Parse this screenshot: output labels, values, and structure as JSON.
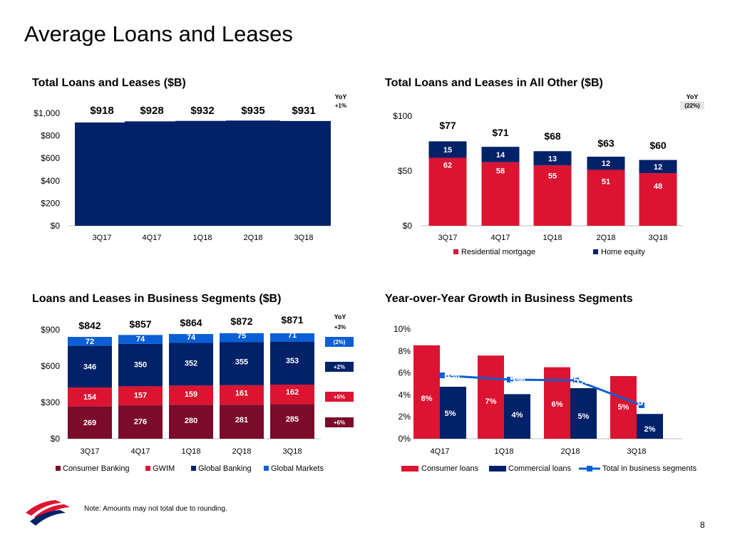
{
  "page": {
    "title": "Average Loans and Leases",
    "note": "Note: Amounts may not total due to rounding.",
    "page_number": "8",
    "logo_name": "bank-flag-logo"
  },
  "colors": {
    "navy": "#012169",
    "red": "#dc1431",
    "maroon": "#7a0b2a",
    "blue": "#0a5fd4",
    "yoy_bg": "#e6e6e6"
  },
  "chart_data": [
    {
      "id": "total",
      "type": "bar",
      "title": "Total Loans and Leases ($B)",
      "categories": [
        "3Q17",
        "4Q17",
        "1Q18",
        "2Q18",
        "3Q18"
      ],
      "values": [
        918,
        928,
        932,
        935,
        931
      ],
      "total_labels": [
        "$918",
        "$928",
        "$932",
        "$935",
        "$931"
      ],
      "ylim": [
        0,
        1000
      ],
      "yticks": [
        "$0",
        "$200",
        "$400",
        "$600",
        "$800",
        "$1,000"
      ],
      "yoy_header": "YoY",
      "yoy": [
        "+1%"
      ]
    },
    {
      "id": "allother",
      "type": "bar",
      "stacked": true,
      "title": "Total Loans and Leases in All Other ($B)",
      "categories": [
        "3Q17",
        "4Q17",
        "1Q18",
        "2Q18",
        "3Q18"
      ],
      "series": [
        {
          "name": "Residential mortgage",
          "values": [
            62,
            58,
            55,
            51,
            48
          ]
        },
        {
          "name": "Home equity",
          "values": [
            15,
            14,
            13,
            12,
            12
          ]
        }
      ],
      "total_labels": [
        "$77",
        "$71",
        "$68",
        "$63",
        "$60"
      ],
      "ylim": [
        0,
        100
      ],
      "yticks": [
        "$0",
        "$50",
        "$100"
      ],
      "yoy_header": "YoY",
      "yoy": [
        "(22%)"
      ],
      "legend": [
        "Residential mortgage",
        "Home equity"
      ]
    },
    {
      "id": "segments",
      "type": "bar",
      "stacked": true,
      "title": "Loans and Leases in Business Segments ($B)",
      "categories": [
        "3Q17",
        "4Q17",
        "1Q18",
        "2Q18",
        "3Q18"
      ],
      "series": [
        {
          "name": "Consumer Banking",
          "values": [
            269,
            276,
            280,
            281,
            285
          ],
          "yoy": "+6%"
        },
        {
          "name": "GWIM",
          "values": [
            154,
            157,
            159,
            161,
            162
          ],
          "yoy": "+5%"
        },
        {
          "name": "Global Banking",
          "values": [
            346,
            350,
            352,
            355,
            353
          ],
          "yoy": "+2%"
        },
        {
          "name": "Global Markets",
          "values": [
            72,
            74,
            74,
            75,
            71
          ],
          "yoy": "(2%)"
        }
      ],
      "total_labels": [
        "$842",
        "$857",
        "$864",
        "$872",
        "$871"
      ],
      "ylim": [
        0,
        900
      ],
      "yticks": [
        "$0",
        "$300",
        "$600",
        "$900"
      ],
      "yoy_header": "YoY",
      "yoy_total": "+3%",
      "legend": [
        "Consumer Banking",
        "GWIM",
        "Global Banking",
        "Global Markets"
      ]
    },
    {
      "id": "growth",
      "type": "bar",
      "title": "Year-over-Year Growth in Business Segments",
      "categories": [
        "4Q17",
        "1Q18",
        "2Q18",
        "3Q18"
      ],
      "series": [
        {
          "name": "Consumer loans",
          "values": [
            8,
            7,
            6,
            5
          ],
          "labels": [
            "8%",
            "7%",
            "6%",
            "5%"
          ]
        },
        {
          "name": "Commercial loans",
          "values": [
            5,
            4,
            5,
            2
          ],
          "labels": [
            "5%",
            "4%",
            "5%",
            "2%"
          ]
        },
        {
          "name": "Total in business segments",
          "type": "line",
          "values": [
            6,
            5,
            5,
            3
          ],
          "labels": [
            "6%",
            "5%",
            "5%",
            "3%"
          ]
        }
      ],
      "ylim": [
        0,
        10
      ],
      "yticks": [
        "0%",
        "2%",
        "4%",
        "6%",
        "8%",
        "10%"
      ],
      "legend": [
        "Consumer loans",
        "Commercial loans",
        "Total in business segments"
      ]
    }
  ]
}
